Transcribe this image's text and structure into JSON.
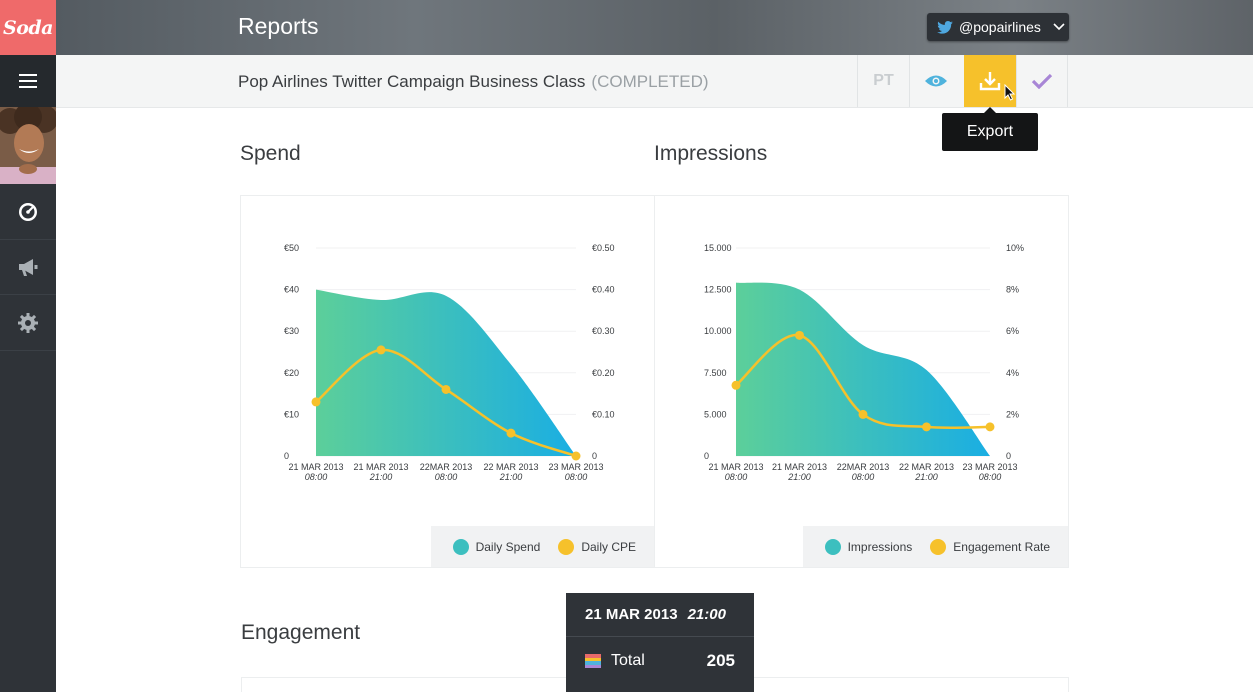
{
  "app": {
    "logo_text": "Soda",
    "page_title": "Reports",
    "account": "@popairlines"
  },
  "sidebar": {
    "items": [
      {
        "icon": "dashboard-icon"
      },
      {
        "icon": "megaphone-icon"
      },
      {
        "icon": "gear-icon"
      }
    ]
  },
  "toolbar": {
    "campaign_name": "Pop Airlines Twitter Campaign Business Class",
    "campaign_status": "(COMPLETED)",
    "lang_label": "PT",
    "export_tooltip": "Export"
  },
  "sections": {
    "spend": "Spend",
    "impressions": "Impressions",
    "engagement": "Engagement"
  },
  "colors": {
    "area_start": "#5ccf9a",
    "area_end": "#1aaee3",
    "line": "#f6c12b",
    "accent": "#f6c12b",
    "logo_bg": "#ef6a6a"
  },
  "chart_data": [
    {
      "type": "area",
      "title": "Spend",
      "categories": [
        "21 MAR 2013",
        "21 MAR 2013",
        "22MAR 2013",
        "22 MAR 2013",
        "23 MAR 2013"
      ],
      "category_times": [
        "08:00",
        "21:00",
        "08:00",
        "21:00",
        "08:00"
      ],
      "y_left_ticks": [
        "€50",
        "€40",
        "€30",
        "€20",
        "€10",
        "0"
      ],
      "y_right_ticks": [
        "€0.50",
        "€0.40",
        "€0.30",
        "€0.20",
        "€0.10",
        "0"
      ],
      "ylim_left": [
        0,
        50
      ],
      "ylim_right": [
        0,
        0.5
      ],
      "series": [
        {
          "name": "Daily Spend",
          "kind": "area",
          "axis": "left",
          "values": [
            40,
            37.5,
            38.5,
            22,
            0
          ]
        },
        {
          "name": "Daily CPE",
          "kind": "line",
          "axis": "right",
          "values": [
            0.13,
            0.255,
            0.16,
            0.055,
            0
          ]
        }
      ]
    },
    {
      "type": "area",
      "title": "Impressions",
      "categories": [
        "21 MAR 2013",
        "21 MAR 2013",
        "22MAR 2013",
        "22 MAR 2013",
        "23 MAR 2013"
      ],
      "category_times": [
        "08:00",
        "21:00",
        "08:00",
        "21:00",
        "08:00"
      ],
      "y_left_ticks": [
        "15.000",
        "12.500",
        "10.000",
        "7.500",
        "5.000",
        "0"
      ],
      "y_right_ticks": [
        "10%",
        "8%",
        "6%",
        "4%",
        "2%",
        "0"
      ],
      "ylim_left": [
        0,
        15000
      ],
      "ylim_right": [
        0,
        10
      ],
      "series": [
        {
          "name": "Impressions",
          "kind": "area",
          "axis": "left",
          "values": [
            12500,
            12000,
            8000,
            6200,
            0
          ]
        },
        {
          "name": "Engagement Rate",
          "kind": "line",
          "axis": "right",
          "values": [
            3.4,
            5.8,
            2.0,
            1.4,
            1.4
          ]
        }
      ]
    }
  ],
  "data_card": {
    "date": "21 MAR 2013",
    "time": "21:00",
    "label": "Total",
    "value": "205"
  }
}
